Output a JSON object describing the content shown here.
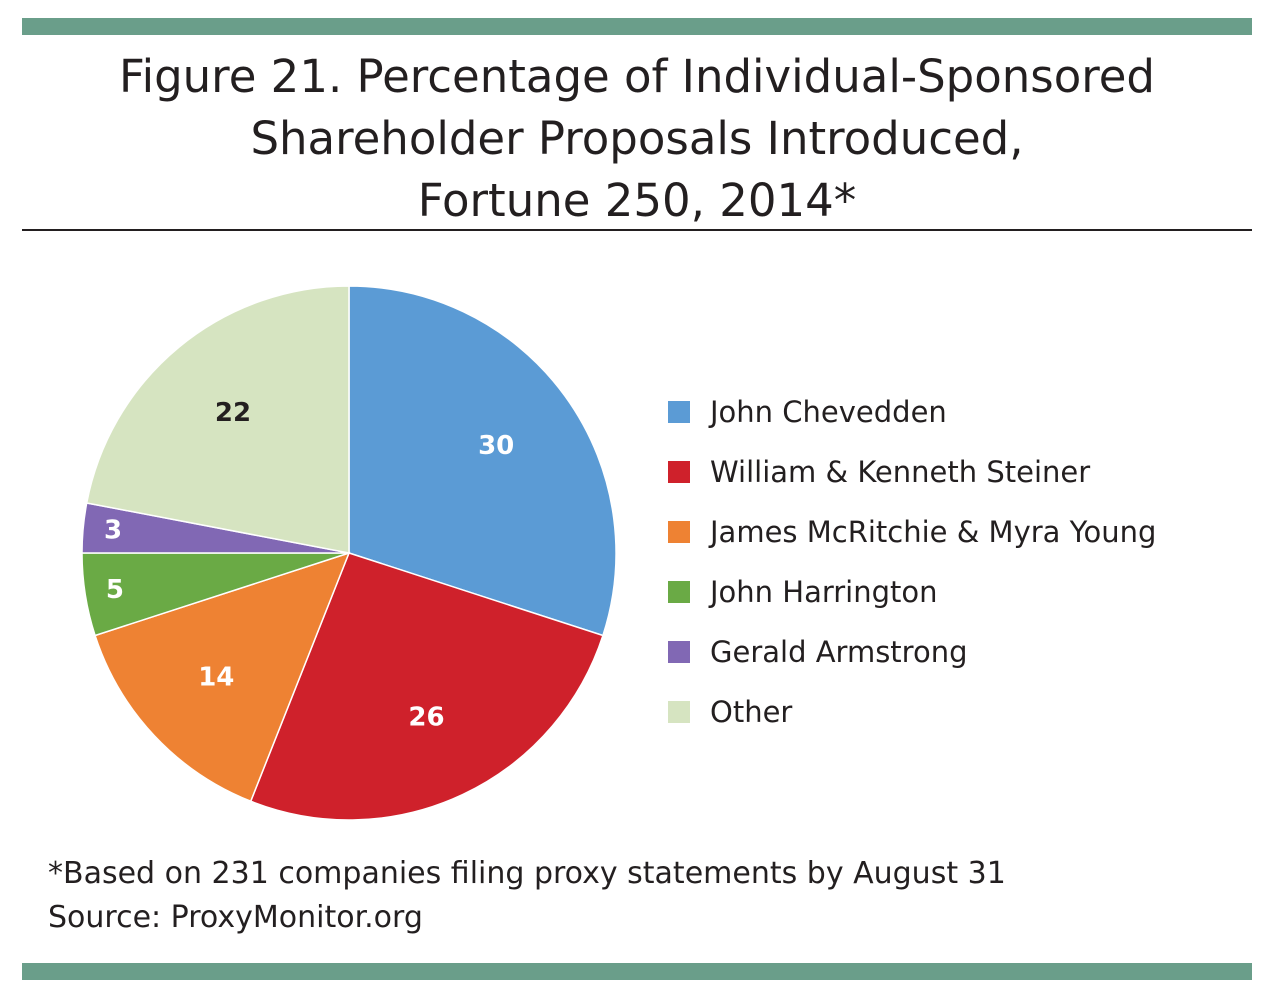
{
  "colors": {
    "bar": "#6a9e8a",
    "text": "#231f20"
  },
  "chart_data": {
    "type": "pie",
    "title": [
      "Figure 21. Percentage of Individual-Sponsored",
      "Shareholder Proposals Introduced,",
      "Fortune 250, 2014*"
    ],
    "slices": [
      {
        "label": "John Chevedden",
        "value": 30,
        "color": "#5b9bd5",
        "label_color": "#ffffff"
      },
      {
        "label": "William & Kenneth Steiner",
        "value": 26,
        "color": "#cf212b",
        "label_color": "#ffffff"
      },
      {
        "label": "James McRitchie & Myra Young",
        "value": 14,
        "color": "#ee8233",
        "label_color": "#ffffff"
      },
      {
        "label": "John Harrington",
        "value": 5,
        "color": "#6aaa45",
        "label_color": "#ffffff"
      },
      {
        "label": "Gerald Armstrong",
        "value": 3,
        "color": "#8168b4",
        "label_color": "#ffffff"
      },
      {
        "label": "Other",
        "value": 22,
        "color": "#d6e4c1",
        "label_color": "#231f20"
      }
    ],
    "start_angle_deg": 0,
    "direction": "clockwise",
    "legend_position": "right",
    "footnote": "*Based on 231 companies filing proxy statements by August 31",
    "source": "Source: ProxyMonitor.org"
  }
}
